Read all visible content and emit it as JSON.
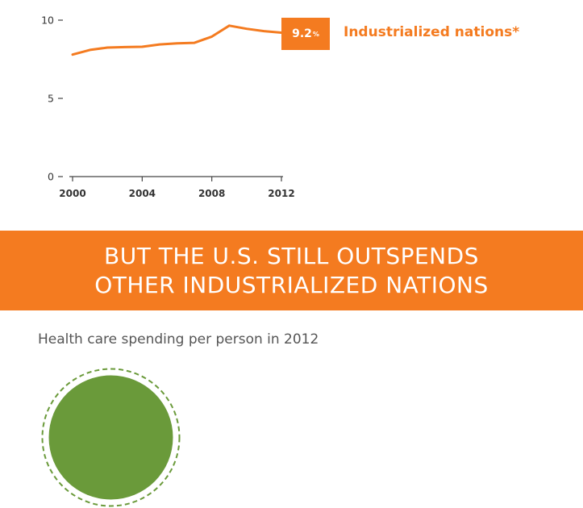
{
  "chart_data": {
    "type": "line",
    "x": [
      2000,
      2001,
      2002,
      2003,
      2004,
      2005,
      2006,
      2007,
      2008,
      2009,
      2010,
      2011,
      2012
    ],
    "series": [
      {
        "name": "Industrialized nations*",
        "values": [
          7.8,
          8.1,
          8.25,
          8.28,
          8.3,
          8.45,
          8.52,
          8.55,
          8.95,
          9.65,
          9.45,
          9.3,
          9.2
        ]
      }
    ],
    "xticks": [
      "2000",
      "2004",
      "2008",
      "2012"
    ],
    "yticks": [
      "0",
      "5",
      "10"
    ],
    "ylim": [
      0,
      10
    ],
    "xlim": [
      2000,
      2012
    ],
    "end_label": {
      "value": "9.2",
      "unit": "%"
    },
    "line_color": "#F47B20"
  },
  "banner": {
    "line1": "BUT THE U.S. STILL OUTSPENDS",
    "line2": "OTHER INDUSTRIALIZED NATIONS"
  },
  "section_title": "Health care spending per person in 2012",
  "colors": {
    "accent": "#F47B20",
    "green": "#6A9A3A",
    "text": "#333333"
  }
}
